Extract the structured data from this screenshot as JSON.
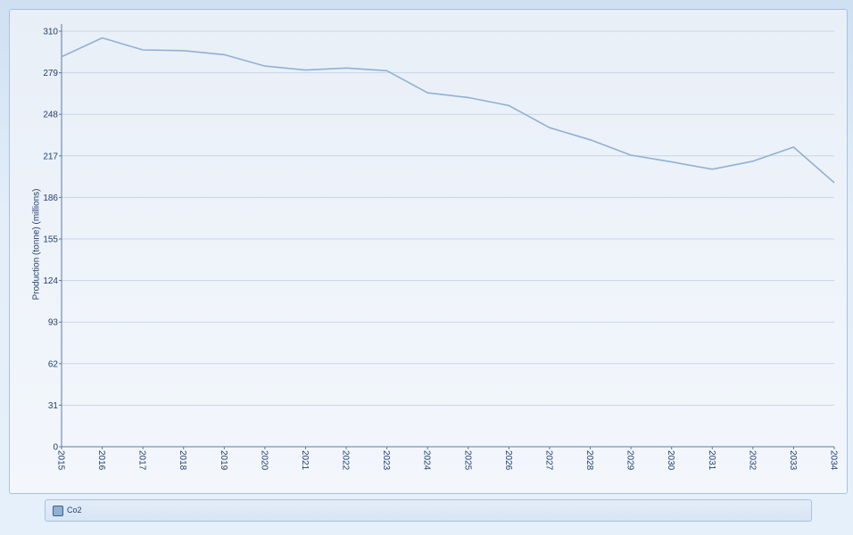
{
  "chart_data": {
    "type": "line",
    "title": "",
    "xlabel": "",
    "ylabel": "Production (tonne) (millions)",
    "x": [
      "2015",
      "2016",
      "2017",
      "2018",
      "2019",
      "2020",
      "2021",
      "2022",
      "2023",
      "2024",
      "2025",
      "2026",
      "2027",
      "2028",
      "2029",
      "2030",
      "2031",
      "2032",
      "2033",
      "2034"
    ],
    "yticks": [
      "0",
      "31",
      "62",
      "93",
      "124",
      "155",
      "186",
      "217",
      "248",
      "279",
      "310"
    ],
    "ylim": [
      0,
      310
    ],
    "grid": true,
    "legend_position": "bottom",
    "series": [
      {
        "name": "Co2",
        "color": "#8fb1d6",
        "values": [
          291,
          305,
          296,
          295.5,
          292.5,
          284,
          281,
          282.5,
          280.5,
          264,
          260.5,
          254.5,
          238,
          229,
          217.5,
          212.5,
          207,
          213,
          223.5,
          197
        ]
      }
    ]
  }
}
